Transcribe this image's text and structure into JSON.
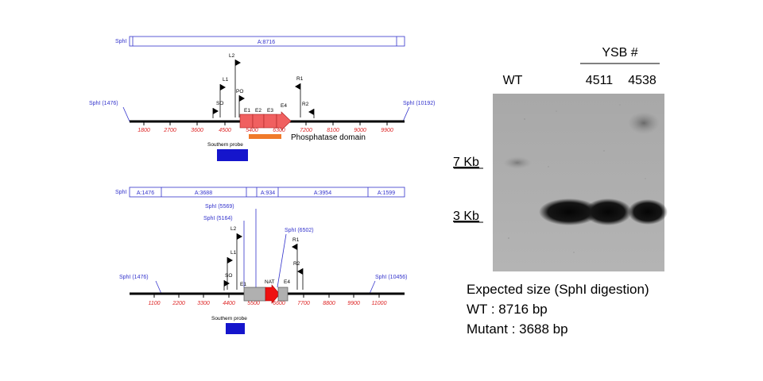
{
  "top_map": {
    "bar_left_label": "SphI",
    "bar_segment": "A:8716",
    "left_site": "SphI (1476)",
    "right_site": "SphI (10192)",
    "ticks": [
      "1800",
      "2700",
      "3600",
      "4500",
      "5400",
      "6300",
      "7200",
      "8100",
      "9000",
      "9900"
    ],
    "primers": [
      "L2",
      "L1",
      "PO",
      "SO",
      "R1",
      "R2"
    ],
    "exons": [
      "E1",
      "E2",
      "E3",
      "E4"
    ],
    "domain_label": "Phosphatase domain",
    "probe_label": "Southern probe"
  },
  "bottom_map": {
    "bar_left_label": "SphI",
    "bar_segments": [
      "A:1476",
      "A:3688",
      "A:934",
      "A:3954",
      "A:1599"
    ],
    "left_site": "SphI (1476)",
    "right_site": "SphI (10456)",
    "sites": [
      "SphI (5569)",
      "SphI (5164)",
      "SphI (6502)"
    ],
    "ticks": [
      "1100",
      "2200",
      "3300",
      "4400",
      "5500",
      "6600",
      "7700",
      "8800",
      "9900",
      "11000"
    ],
    "primers": [
      "L2",
      "L1",
      "SO",
      "R1",
      "R2"
    ],
    "features": [
      "E1",
      "NAT",
      "E4"
    ],
    "probe_label": "Southern probe"
  },
  "blot": {
    "group_label": "YSB #",
    "lanes": [
      "WT",
      "4511",
      "4538"
    ],
    "markers": [
      "7 Kb",
      "3 Kb"
    ]
  },
  "notes": {
    "line1": "Expected size (SphI digestion)",
    "line2": "WT : 8716 bp",
    "line3": "Mutant : 3688 bp"
  },
  "colors": {
    "exon": "#f06060",
    "nat": "#ee1111",
    "grey_box": "#b0b0b0",
    "domain": "#f07a2a",
    "probe": "#1515cc",
    "site_text": "#3333cc",
    "tick_text": "#dd2222"
  }
}
